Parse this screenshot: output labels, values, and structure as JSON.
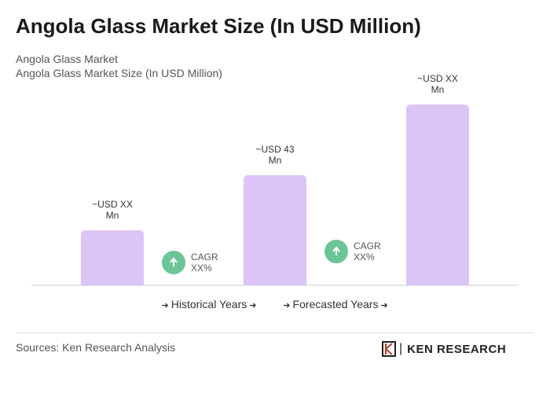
{
  "chart_data": {
    "type": "bar",
    "title": "Angola Glass Market Size (In USD Million)",
    "subtitle": [
      "Angola Glass Market",
      "Angola Glass Market Size (In USD Million)"
    ],
    "categories": [
      null,
      null,
      null
    ],
    "values": [
      21.5,
      43,
      70.6
    ],
    "value_labels": [
      "~USD XX Mn",
      "~USD 43 Mn",
      "~USD XX Mn"
    ],
    "color": "#dcc4f7",
    "annotations": [
      "CAGR XX%",
      "CAGR XX%"
    ],
    "annotation_color": "#6cc596",
    "periods": [
      "Historical Years",
      "Forecasted Years"
    ],
    "source": "Sources: Ken Research Analysis",
    "logo": "KEN RESEARCH"
  }
}
